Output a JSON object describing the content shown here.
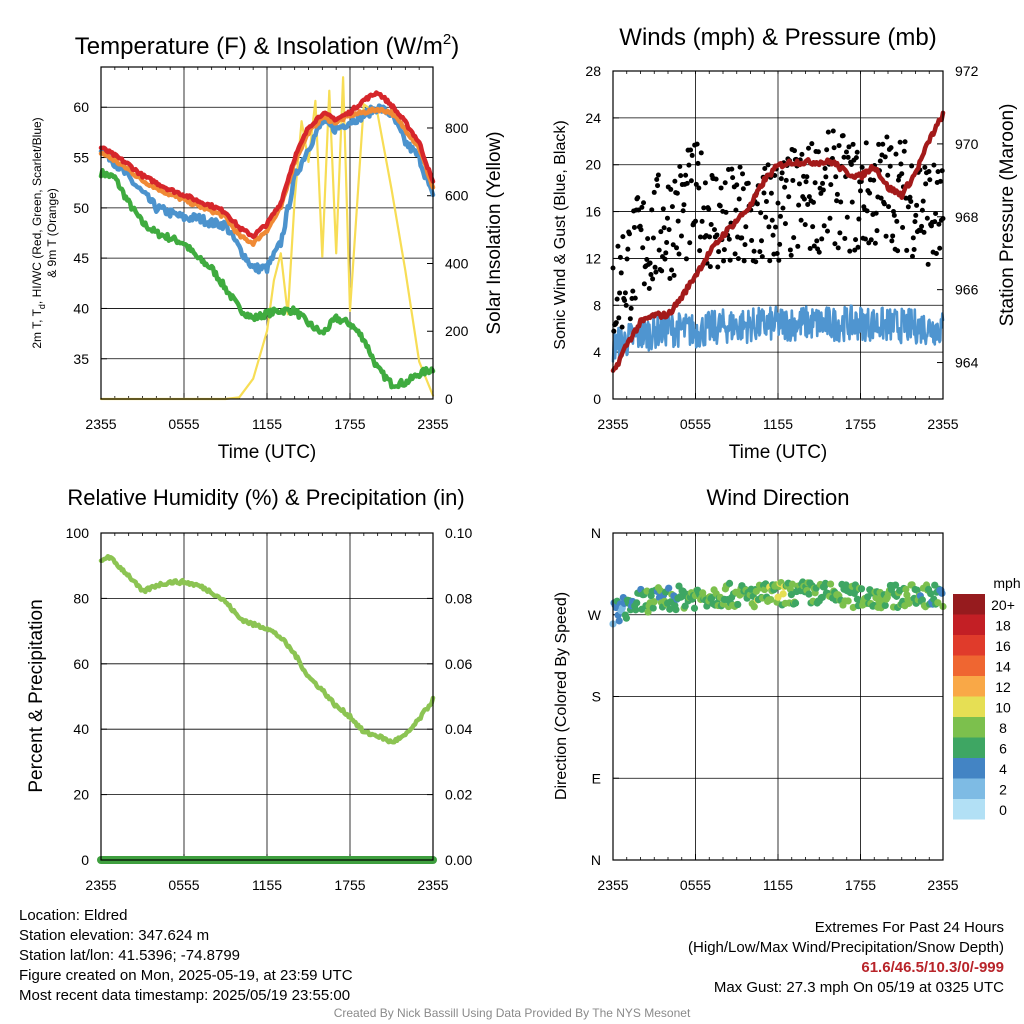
{
  "charts": {
    "temperature": {
      "title": "Temperature (F) & Insolation (W/m",
      "title_sup": "2",
      "title_close": ")",
      "xlabel": "Time (UTC)",
      "ylabel_left_1": "2m T, T",
      "ylabel_left_sub": "d",
      "ylabel_left_2": ", HI/WC (Red, Green, Scarlet/Blue)",
      "ylabel_left_3": "& 9m T (Orange)",
      "ylabel_right": "Solar Insolation (Yellow)",
      "xticks": [
        "2355",
        "0555",
        "1155",
        "1755",
        "2355"
      ],
      "yticks_left": [
        "35",
        "40",
        "45",
        "50",
        "55",
        "60"
      ],
      "yticks_right": [
        "0",
        "200",
        "400",
        "600",
        "800"
      ]
    },
    "winds": {
      "title": "Winds (mph) & Pressure (mb)",
      "xlabel": "Time (UTC)",
      "ylabel_left": "Sonic Wind & Gust (Blue, Black)",
      "ylabel_right": "Station Pressure (Maroon)",
      "xticks": [
        "2355",
        "0555",
        "1155",
        "1755",
        "2355"
      ],
      "yticks_left": [
        "0",
        "4",
        "8",
        "12",
        "16",
        "20",
        "24",
        "28"
      ],
      "yticks_right": [
        "964",
        "966",
        "968",
        "970",
        "972"
      ]
    },
    "humidity": {
      "title": "Relative Humidity (%) & Precipitation (in)",
      "ylabel_left": "Percent & Precipitation",
      "xticks": [
        "2355",
        "0555",
        "1155",
        "1755",
        "2355"
      ],
      "yticks_left": [
        "0",
        "20",
        "40",
        "60",
        "80",
        "100"
      ],
      "yticks_right": [
        "0.00",
        "0.02",
        "0.04",
        "0.06",
        "0.08",
        "0.10"
      ]
    },
    "direction": {
      "title": "Wind Direction",
      "ylabel_left": "Direction (Colored By Speed)",
      "xticks": [
        "2355",
        "0555",
        "1155",
        "1755",
        "2355"
      ],
      "yticks_left": [
        "N",
        "E",
        "S",
        "W",
        "N"
      ],
      "legend_title": "mph",
      "legend_labels": [
        "20+",
        "18",
        "16",
        "14",
        "12",
        "10",
        "8",
        "6",
        "4",
        "2",
        "0"
      ]
    }
  },
  "colors": {
    "temperature_red": "#d6262b",
    "nine_m_orange": "#f08a35",
    "wind_chill_blue": "#4c93cd",
    "dewpoint_green": "#3fab3f",
    "insolation_yellow": "#f7dd55",
    "pressure_maroon": "#a31a1a",
    "wind_blue": "#4f95d0",
    "gust_black": "#000000",
    "humidity_green": "#8cc453",
    "precip_green": "#3f9f3f",
    "speed_scale": [
      "#b2e0f5",
      "#7ebbe4",
      "#4384c4",
      "#3ea663",
      "#7cc04d",
      "#e6df54",
      "#f9a847",
      "#ef6631",
      "#e03b2b",
      "#c31f25",
      "#961b1e"
    ]
  },
  "chart_data": [
    {
      "type": "line",
      "title": "Temperature (F) & Insolation (W/m2)",
      "xlabel": "Time (UTC)",
      "ylabel": "2m T, Td, HI/WC (Red, Green, Scarlet/Blue) & 9m T (Orange)",
      "y2label": "Solar Insolation (Yellow)",
      "x_hours_ticks": [
        "2355",
        "0555",
        "1155",
        "1755",
        "2355"
      ],
      "ylim": [
        31,
        64
      ],
      "y2lim": [
        0,
        980
      ],
      "series": [
        {
          "name": "2m T (Red)",
          "x_hours": [
            0,
            1,
            2,
            3,
            4,
            5,
            6,
            7,
            8,
            9,
            10,
            11,
            12,
            13,
            14,
            15,
            16,
            17,
            18,
            19,
            20,
            21,
            22,
            23,
            24
          ],
          "values": [
            56,
            55.2,
            54.3,
            53.2,
            52.5,
            51.8,
            51.3,
            50.7,
            50.2,
            49.6,
            48,
            47.2,
            48.4,
            50.5,
            55,
            58,
            59.4,
            58.8,
            59.5,
            60.7,
            61.5,
            60.2,
            58.5,
            56.5,
            52.5
          ]
        },
        {
          "name": "9m T (Orange)",
          "x_hours": [
            0,
            1,
            2,
            3,
            4,
            5,
            6,
            7,
            8,
            9,
            10,
            11,
            12,
            13,
            14,
            15,
            16,
            17,
            18,
            19,
            20,
            21,
            22,
            23,
            24
          ],
          "values": [
            55.5,
            54.7,
            53.8,
            52.7,
            52,
            51.3,
            50.8,
            50.2,
            49.7,
            49.1,
            47.2,
            46.5,
            47.8,
            50,
            54.6,
            57.5,
            59,
            58.5,
            59.2,
            59.5,
            59.8,
            59.5,
            57.8,
            56,
            52
          ]
        },
        {
          "name": "HI/WC (Blue)",
          "x_hours": [
            0,
            1,
            2,
            3,
            4,
            5,
            6,
            7,
            8,
            9,
            10,
            11,
            12,
            13,
            14,
            15,
            16,
            17,
            18,
            19,
            20,
            21,
            22,
            23,
            24
          ],
          "values": [
            56,
            54.5,
            53,
            51.5,
            50,
            49.5,
            49,
            49,
            48.5,
            48.3,
            46,
            44,
            44,
            46.5,
            53,
            56,
            58.5,
            57.8,
            58.6,
            59.2,
            60,
            59.3,
            56.5,
            55,
            51
          ]
        },
        {
          "name": "Td (Green)",
          "x_hours": [
            0,
            1,
            2,
            3,
            4,
            5,
            6,
            7,
            8,
            9,
            10,
            11,
            12,
            13,
            14,
            15,
            16,
            17,
            18,
            19,
            20,
            21,
            22,
            23,
            24
          ],
          "values": [
            53.5,
            53,
            50.5,
            48.5,
            47.5,
            47,
            46.5,
            45,
            44,
            42,
            40,
            39,
            39.5,
            39.8,
            39.8,
            38.5,
            37.5,
            39,
            38.5,
            37,
            34,
            32.5,
            32.6,
            33.5,
            34
          ]
        },
        {
          "name": "Solar Insolation (Yellow)",
          "x_hours": [
            0,
            2,
            4,
            6,
            8,
            9,
            10,
            11,
            11.5,
            12,
            12.5,
            13,
            13.5,
            14,
            14.5,
            15,
            15.5,
            16,
            16.5,
            17,
            17.5,
            18,
            19,
            20,
            21,
            22,
            23,
            24
          ],
          "values": [
            0,
            0,
            0,
            0,
            0,
            0,
            5,
            60,
            130,
            200,
            350,
            430,
            250,
            590,
            820,
            700,
            880,
            420,
            910,
            430,
            950,
            260,
            870,
            840,
            620,
            380,
            110,
            10
          ]
        }
      ]
    },
    {
      "type": "line",
      "title": "Winds (mph) & Pressure (mb)",
      "xlabel": "Time (UTC)",
      "ylabel": "Sonic Wind & Gust (Blue, Black)",
      "y2label": "Station Pressure (Maroon)",
      "ylim": [
        0,
        28
      ],
      "y2lim": [
        963,
        972
      ],
      "series": [
        {
          "name": "Sonic Wind (Blue)",
          "x_hours": [
            0,
            2,
            4,
            6,
            8,
            10,
            12,
            14,
            16,
            18,
            20,
            22,
            24
          ],
          "values": [
            4.5,
            5.5,
            6,
            5.8,
            6.2,
            6.3,
            6.4,
            6.5,
            6.4,
            6.5,
            6.3,
            6.2,
            6.0
          ]
        },
        {
          "name": "Gust (Black)",
          "x_hours": [
            0,
            2,
            4,
            6,
            8,
            10,
            12,
            14,
            16,
            18,
            20,
            22,
            24
          ],
          "values": [
            9,
            13,
            15,
            17,
            15,
            15,
            16,
            17,
            18,
            17,
            18,
            17,
            15
          ]
        },
        {
          "name": "Station Pressure (Maroon)",
          "x_hours": [
            0,
            1,
            2,
            3,
            4,
            5,
            6,
            7,
            8,
            9,
            10,
            11,
            12,
            13,
            14,
            15,
            16,
            17,
            18,
            19,
            20,
            21,
            22,
            23,
            24
          ],
          "values": [
            963.7,
            964.5,
            965.1,
            965.3,
            965.3,
            965.8,
            966.4,
            967,
            967.5,
            967.9,
            968.3,
            969,
            969.4,
            969.5,
            969.5,
            969.5,
            969.5,
            969.2,
            969.1,
            969.4,
            968.8,
            968.6,
            969.2,
            970.1,
            970.8
          ]
        }
      ]
    },
    {
      "type": "line",
      "title": "Relative Humidity (%) & Precipitation (in)",
      "ylabel": "Percent & Precipitation",
      "ylim": [
        0,
        100
      ],
      "y2lim": [
        0,
        0.1
      ],
      "series": [
        {
          "name": "Relative Humidity",
          "x_hours": [
            0,
            0.5,
            1,
            2,
            3,
            4,
            5,
            6,
            7,
            8,
            9,
            10,
            11,
            12,
            13,
            14,
            15,
            16,
            17,
            18,
            19,
            20,
            21,
            22,
            23,
            24
          ],
          "values": [
            91,
            93,
            91,
            87,
            82,
            84,
            85,
            85,
            84,
            82,
            79,
            74,
            72,
            71,
            68,
            63,
            56,
            52,
            47,
            44,
            39,
            38,
            36,
            38,
            43,
            49
          ]
        },
        {
          "name": "Precipitation",
          "x_hours": [
            0,
            24
          ],
          "values": [
            0,
            0
          ]
        }
      ]
    },
    {
      "type": "scatter",
      "title": "Wind Direction",
      "ylabel": "Direction (Colored By Speed)",
      "y_ticks": [
        "N",
        "E",
        "S",
        "W",
        "N"
      ],
      "ylim": [
        0,
        360
      ],
      "colorbar": {
        "title": "mph",
        "labels": [
          "20+",
          "18",
          "16",
          "14",
          "12",
          "10",
          "8",
          "6",
          "4",
          "2",
          "0"
        ]
      },
      "series": [
        {
          "name": "Direction",
          "x_hours": [
            0,
            2,
            4,
            6,
            8,
            10,
            12,
            14,
            16,
            18,
            20,
            22,
            24
          ],
          "values": [
            272,
            285,
            288,
            290,
            292,
            290,
            293,
            294,
            292,
            290,
            290,
            291,
            292
          ],
          "speed_mph": [
            3,
            6,
            6,
            7,
            7,
            7,
            8,
            7,
            7,
            7,
            7,
            7,
            6
          ]
        }
      ]
    }
  ],
  "info": {
    "location": "Location: Eldred",
    "elevation": "Station elevation: 347.624 m",
    "latlon": "Station lat/lon: 41.5396; -74.8799",
    "created": "Figure created on Mon, 2025-05-19, at 23:59 UTC",
    "timestamp": "Most recent data timestamp: 2025/05/19 23:55:00"
  },
  "extremes": {
    "header": "Extremes For Past 24 Hours",
    "subheader": "(High/Low/Max Wind/Precipitation/Snow Depth)",
    "values": "61.6/46.5/10.3/0/-999",
    "max_gust": "Max Gust: 27.3 mph On 05/19 at 0325 UTC"
  },
  "credit": "Created By Nick Bassill Using Data Provided By The NYS Mesonet"
}
